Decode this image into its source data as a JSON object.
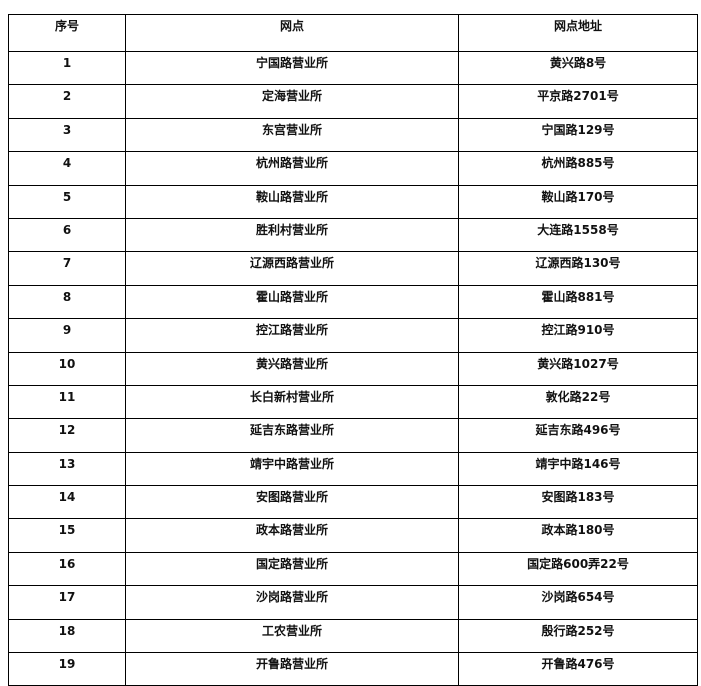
{
  "table": {
    "headers": [
      "序号",
      "网点",
      "网点地址"
    ],
    "rows": [
      [
        "1",
        "宁国路营业所",
        "黄兴路8号"
      ],
      [
        "2",
        "定海营业所",
        "平京路2701号"
      ],
      [
        "3",
        "东宫营业所",
        "宁国路129号"
      ],
      [
        "4",
        "杭州路营业所",
        "杭州路885号"
      ],
      [
        "5",
        "鞍山路营业所",
        "鞍山路170号"
      ],
      [
        "6",
        "胜利村营业所",
        "大连路1558号"
      ],
      [
        "7",
        "辽源西路营业所",
        "辽源西路130号"
      ],
      [
        "8",
        "霍山路营业所",
        "霍山路881号"
      ],
      [
        "9",
        "控江路营业所",
        "控江路910号"
      ],
      [
        "10",
        "黄兴路营业所",
        "黄兴路1027号"
      ],
      [
        "11",
        "长白新村营业所",
        "敦化路22号"
      ],
      [
        "12",
        "延吉东路营业所",
        "延吉东路496号"
      ],
      [
        "13",
        "靖宇中路营业所",
        "靖宇中路146号"
      ],
      [
        "14",
        "安图路营业所",
        "安图路183号"
      ],
      [
        "15",
        "政本路营业所",
        "政本路180号"
      ],
      [
        "16",
        "国定路营业所",
        "国定路600弄22号"
      ],
      [
        "17",
        "沙岗路营业所",
        "沙岗路654号"
      ],
      [
        "18",
        "工农营业所",
        "殷行路252号"
      ],
      [
        "19",
        "开鲁路营业所",
        "开鲁路476号"
      ]
    ]
  }
}
